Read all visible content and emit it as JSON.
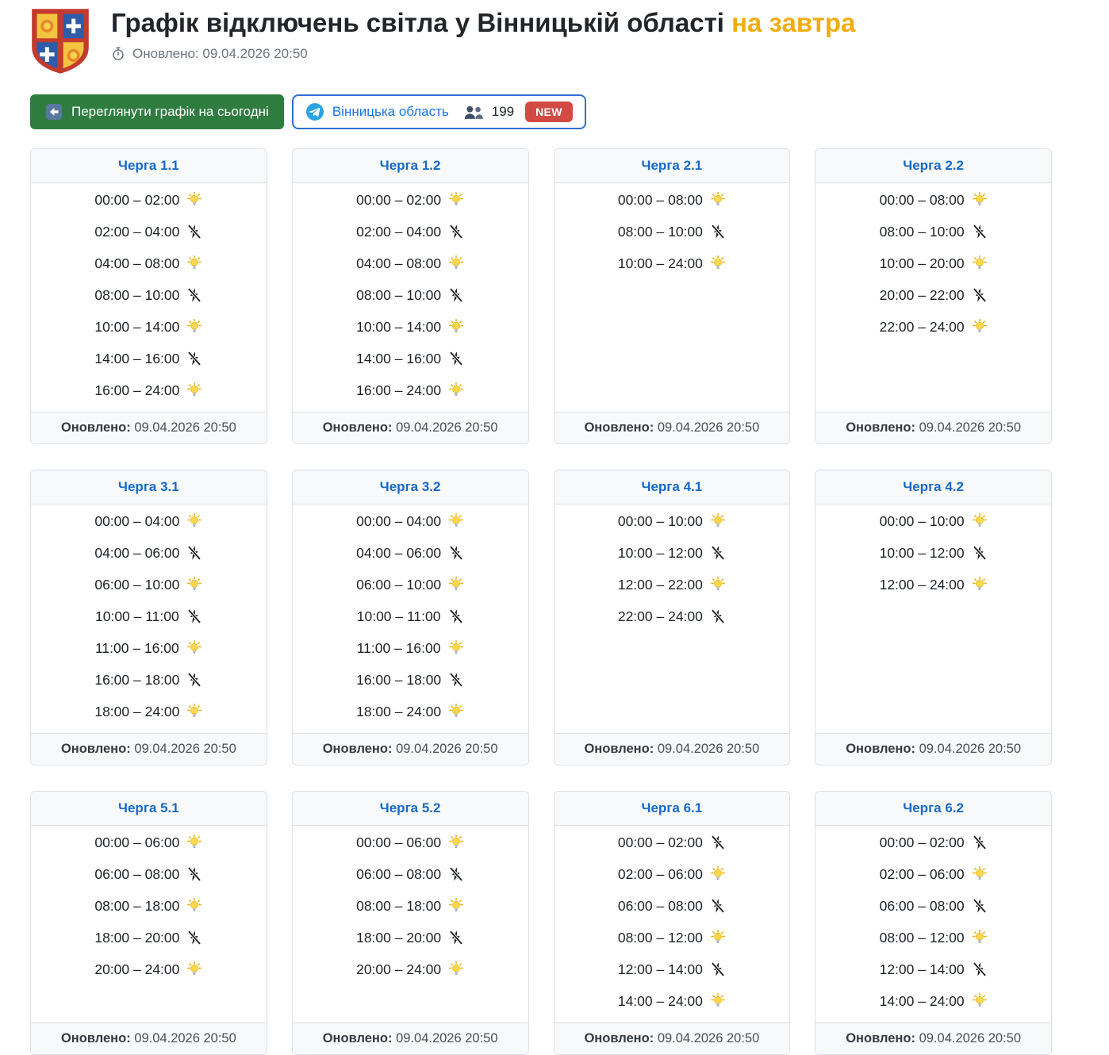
{
  "colors": {
    "accent_yellow": "#f0ad0d",
    "green_button": "#2e7d3f",
    "card_title_blue": "#1769c7",
    "telegram_blue": "#1a73e8",
    "new_badge_red": "#d24a43"
  },
  "header": {
    "logo_icon": "vinnytsia-coat-of-arms",
    "title_main": "Графік відключень світла у Вінницькій області",
    "title_accent": "на завтра",
    "clock_icon": "stopwatch-icon",
    "updated_label": "Оновлено:",
    "updated_value": "09.04.2026 20:50"
  },
  "toolbar": {
    "today_button_label": "Переглянути графік на сьогодні",
    "back_arrow_icon": "back-arrow-icon",
    "telegram_icon": "telegram-icon",
    "telegram_channel": "Вінницька область",
    "members_icon": "people-icon",
    "members_count": "199",
    "new_badge": "NEW"
  },
  "icons": {
    "on": "power-on-bulb-icon",
    "off": "power-off-crossed-icon"
  },
  "cards": [
    {
      "title": "Черга 1.1",
      "updated_label": "Оновлено:",
      "updated_value": "09.04.2026 20:50",
      "rows": [
        {
          "time": "00:00 – 02:00",
          "state": "on"
        },
        {
          "time": "02:00 – 04:00",
          "state": "off"
        },
        {
          "time": "04:00 – 08:00",
          "state": "on"
        },
        {
          "time": "08:00 – 10:00",
          "state": "off"
        },
        {
          "time": "10:00 – 14:00",
          "state": "on"
        },
        {
          "time": "14:00 – 16:00",
          "state": "off"
        },
        {
          "time": "16:00 – 24:00",
          "state": "on"
        }
      ]
    },
    {
      "title": "Черга 1.2",
      "updated_label": "Оновлено:",
      "updated_value": "09.04.2026 20:50",
      "rows": [
        {
          "time": "00:00 – 02:00",
          "state": "on"
        },
        {
          "time": "02:00 – 04:00",
          "state": "off"
        },
        {
          "time": "04:00 – 08:00",
          "state": "on"
        },
        {
          "time": "08:00 – 10:00",
          "state": "off"
        },
        {
          "time": "10:00 – 14:00",
          "state": "on"
        },
        {
          "time": "14:00 – 16:00",
          "state": "off"
        },
        {
          "time": "16:00 – 24:00",
          "state": "on"
        }
      ]
    },
    {
      "title": "Черга 2.1",
      "updated_label": "Оновлено:",
      "updated_value": "09.04.2026 20:50",
      "rows": [
        {
          "time": "00:00 – 08:00",
          "state": "on"
        },
        {
          "time": "08:00 – 10:00",
          "state": "off"
        },
        {
          "time": "10:00 – 24:00",
          "state": "on"
        }
      ]
    },
    {
      "title": "Черга 2.2",
      "updated_label": "Оновлено:",
      "updated_value": "09.04.2026 20:50",
      "rows": [
        {
          "time": "00:00 – 08:00",
          "state": "on"
        },
        {
          "time": "08:00 – 10:00",
          "state": "off"
        },
        {
          "time": "10:00 – 20:00",
          "state": "on"
        },
        {
          "time": "20:00 – 22:00",
          "state": "off"
        },
        {
          "time": "22:00 – 24:00",
          "state": "on"
        }
      ]
    },
    {
      "title": "Черга 3.1",
      "updated_label": "Оновлено:",
      "updated_value": "09.04.2026 20:50",
      "rows": [
        {
          "time": "00:00 – 04:00",
          "state": "on"
        },
        {
          "time": "04:00 – 06:00",
          "state": "off"
        },
        {
          "time": "06:00 – 10:00",
          "state": "on"
        },
        {
          "time": "10:00 – 11:00",
          "state": "off"
        },
        {
          "time": "11:00 – 16:00",
          "state": "on"
        },
        {
          "time": "16:00 – 18:00",
          "state": "off"
        },
        {
          "time": "18:00 – 24:00",
          "state": "on"
        }
      ]
    },
    {
      "title": "Черга 3.2",
      "updated_label": "Оновлено:",
      "updated_value": "09.04.2026 20:50",
      "rows": [
        {
          "time": "00:00 – 04:00",
          "state": "on"
        },
        {
          "time": "04:00 – 06:00",
          "state": "off"
        },
        {
          "time": "06:00 – 10:00",
          "state": "on"
        },
        {
          "time": "10:00 – 11:00",
          "state": "off"
        },
        {
          "time": "11:00 – 16:00",
          "state": "on"
        },
        {
          "time": "16:00 – 18:00",
          "state": "off"
        },
        {
          "time": "18:00 – 24:00",
          "state": "on"
        }
      ]
    },
    {
      "title": "Черга 4.1",
      "updated_label": "Оновлено:",
      "updated_value": "09.04.2026 20:50",
      "rows": [
        {
          "time": "00:00 – 10:00",
          "state": "on"
        },
        {
          "time": "10:00 – 12:00",
          "state": "off"
        },
        {
          "time": "12:00 – 22:00",
          "state": "on"
        },
        {
          "time": "22:00 – 24:00",
          "state": "off"
        }
      ]
    },
    {
      "title": "Черга 4.2",
      "updated_label": "Оновлено:",
      "updated_value": "09.04.2026 20:50",
      "rows": [
        {
          "time": "00:00 – 10:00",
          "state": "on"
        },
        {
          "time": "10:00 – 12:00",
          "state": "off"
        },
        {
          "time": "12:00 – 24:00",
          "state": "on"
        }
      ]
    },
    {
      "title": "Черга 5.1",
      "updated_label": "Оновлено:",
      "updated_value": "09.04.2026 20:50",
      "rows": [
        {
          "time": "00:00 – 06:00",
          "state": "on"
        },
        {
          "time": "06:00 – 08:00",
          "state": "off"
        },
        {
          "time": "08:00 – 18:00",
          "state": "on"
        },
        {
          "time": "18:00 – 20:00",
          "state": "off"
        },
        {
          "time": "20:00 – 24:00",
          "state": "on"
        }
      ]
    },
    {
      "title": "Черга 5.2",
      "updated_label": "Оновлено:",
      "updated_value": "09.04.2026 20:50",
      "rows": [
        {
          "time": "00:00 – 06:00",
          "state": "on"
        },
        {
          "time": "06:00 – 08:00",
          "state": "off"
        },
        {
          "time": "08:00 – 18:00",
          "state": "on"
        },
        {
          "time": "18:00 – 20:00",
          "state": "off"
        },
        {
          "time": "20:00 – 24:00",
          "state": "on"
        }
      ]
    },
    {
      "title": "Черга 6.1",
      "updated_label": "Оновлено:",
      "updated_value": "09.04.2026 20:50",
      "rows": [
        {
          "time": "00:00 – 02:00",
          "state": "off"
        },
        {
          "time": "02:00 – 06:00",
          "state": "on"
        },
        {
          "time": "06:00 – 08:00",
          "state": "off"
        },
        {
          "time": "08:00 – 12:00",
          "state": "on"
        },
        {
          "time": "12:00 – 14:00",
          "state": "off"
        },
        {
          "time": "14:00 – 24:00",
          "state": "on"
        }
      ]
    },
    {
      "title": "Черга 6.2",
      "updated_label": "Оновлено:",
      "updated_value": "09.04.2026 20:50",
      "rows": [
        {
          "time": "00:00 – 02:00",
          "state": "off"
        },
        {
          "time": "02:00 – 06:00",
          "state": "on"
        },
        {
          "time": "06:00 – 08:00",
          "state": "off"
        },
        {
          "time": "08:00 – 12:00",
          "state": "on"
        },
        {
          "time": "12:00 – 14:00",
          "state": "off"
        },
        {
          "time": "14:00 – 24:00",
          "state": "on"
        }
      ]
    }
  ]
}
